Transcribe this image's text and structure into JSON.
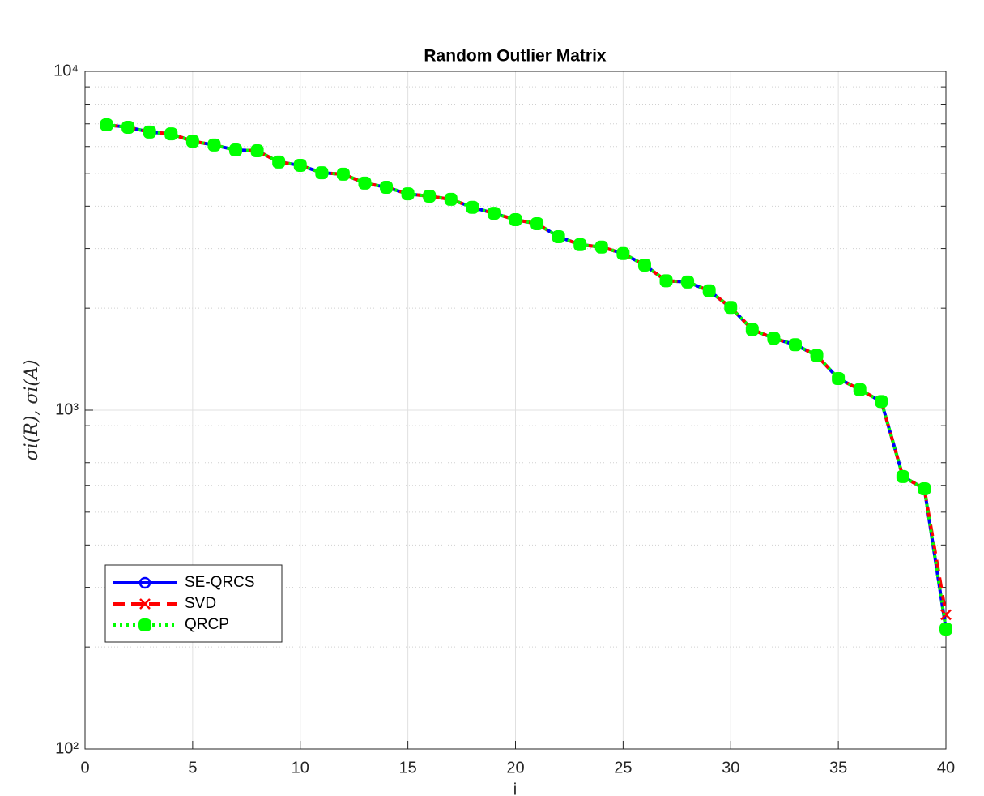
{
  "chart_data": {
    "type": "line",
    "title": "Random Outlier Matrix",
    "xlabel": "i",
    "ylabel": "σi(R), σi(A)",
    "x": [
      1,
      2,
      3,
      4,
      5,
      6,
      7,
      8,
      9,
      10,
      11,
      12,
      13,
      14,
      15,
      16,
      17,
      18,
      19,
      20,
      21,
      22,
      23,
      24,
      25,
      26,
      27,
      28,
      29,
      30,
      31,
      32,
      33,
      34,
      35,
      36,
      37,
      38,
      39,
      40
    ],
    "series": [
      {
        "name": "SE-QRCS",
        "color": "#0000ff",
        "linestyle": "solid",
        "marker": "circle",
        "values": [
          6950,
          6840,
          6620,
          6540,
          6220,
          6060,
          5860,
          5830,
          5400,
          5280,
          5020,
          4970,
          4680,
          4550,
          4350,
          4280,
          4190,
          3970,
          3810,
          3650,
          3550,
          3250,
          3080,
          3030,
          2900,
          2680,
          2410,
          2390,
          2250,
          2010,
          1730,
          1630,
          1560,
          1450,
          1240,
          1150,
          1060,
          637,
          586,
          226
        ]
      },
      {
        "name": "SVD",
        "color": "#ff0000",
        "linestyle": "dashed",
        "marker": "x",
        "values": [
          6950,
          6840,
          6620,
          6540,
          6220,
          6060,
          5860,
          5830,
          5400,
          5280,
          5020,
          4970,
          4680,
          4550,
          4350,
          4280,
          4190,
          3970,
          3810,
          3650,
          3550,
          3250,
          3080,
          3030,
          2900,
          2680,
          2410,
          2390,
          2250,
          2010,
          1730,
          1630,
          1560,
          1450,
          1240,
          1150,
          1060,
          637,
          586,
          249
        ]
      },
      {
        "name": "QRCP",
        "color": "#00ff00",
        "linestyle": "dotted",
        "marker": "square",
        "values": [
          6950,
          6840,
          6620,
          6540,
          6220,
          6060,
          5860,
          5830,
          5400,
          5280,
          5020,
          4970,
          4680,
          4550,
          4350,
          4280,
          4190,
          3970,
          3810,
          3650,
          3550,
          3250,
          3080,
          3030,
          2900,
          2680,
          2410,
          2390,
          2250,
          2010,
          1730,
          1630,
          1560,
          1450,
          1240,
          1150,
          1060,
          637,
          586,
          226
        ]
      }
    ],
    "xlim": [
      0,
      40
    ],
    "xticks": [
      0,
      5,
      10,
      15,
      20,
      25,
      30,
      35,
      40
    ],
    "ylim": [
      100,
      10000
    ],
    "yscale": "log",
    "yticks": [
      {
        "value": 100,
        "label": "10²"
      },
      {
        "value": 1000,
        "label": "10³"
      },
      {
        "value": 10000,
        "label": "10⁴"
      }
    ],
    "grid": true,
    "minor_grid": true,
    "legend": "lower left"
  }
}
